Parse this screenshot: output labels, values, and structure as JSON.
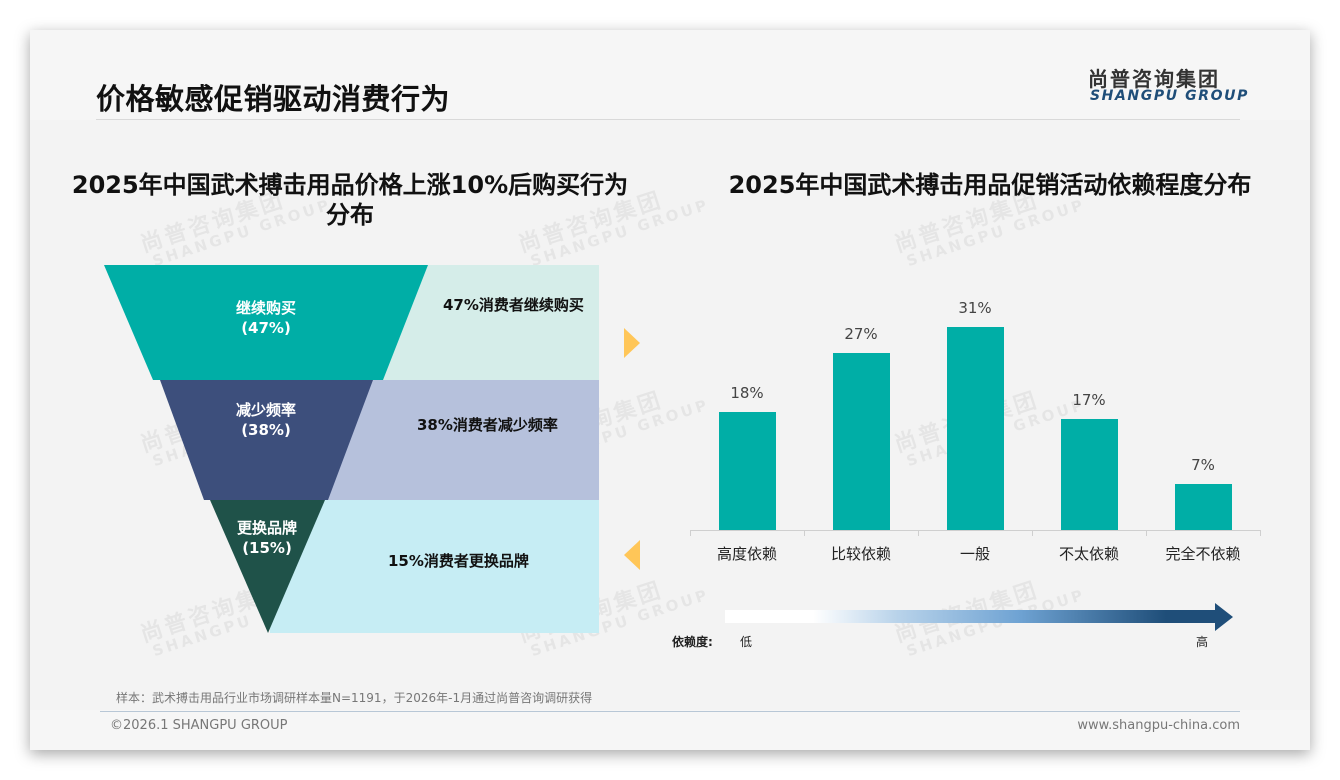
{
  "header": {
    "title": "价格敏感促销驱动消费行为",
    "logo_cn": "尚普咨询集团",
    "logo_en": "SHANGPU GROUP"
  },
  "watermark": {
    "cn": "尚普咨询集团",
    "en": "SHANGPU GROUP"
  },
  "left_chart": {
    "title_line1": "2025年中国武术搏击用品价格上涨10%后购买行为",
    "title_line2": "分布",
    "colors": {
      "band1": "#00aea6",
      "band2": "#3d4f7c",
      "band3": "#1f5249",
      "band1_bg": "#d5ede9",
      "band2_bg": "#b6c1dc",
      "band3_bg": "#c6edf4"
    },
    "segments": [
      {
        "label": "继续购买",
        "pct_label": "(47%)",
        "description": "47%消费者继续购买"
      },
      {
        "label": "减少频率",
        "pct_label": "(38%)",
        "description": "38%消费者减少频率"
      },
      {
        "label": "更换品牌",
        "pct_label": "(15%)",
        "description": "15%消费者更换品牌"
      }
    ]
  },
  "right_chart": {
    "title": "2025年中国武术搏击用品促销活动依赖程度分布",
    "bar_color": "#00aea6",
    "scale": {
      "title": "依赖度:",
      "low": "低",
      "high": "高"
    }
  },
  "chart_data": [
    {
      "type": "funnel",
      "title": "2025年中国武术搏击用品价格上涨10%后购买行为分布",
      "categories": [
        "继续购买",
        "减少频率",
        "更换品牌"
      ],
      "values": [
        47,
        38,
        15
      ],
      "unit": "%",
      "annotations": [
        "47%消费者继续购买",
        "38%消费者减少频率",
        "15%消费者更换品牌"
      ]
    },
    {
      "type": "bar",
      "title": "2025年中国武术搏击用品促销活动依赖程度分布",
      "categories": [
        "高度依赖",
        "比较依赖",
        "一般",
        "不太依赖",
        "完全不依赖"
      ],
      "values": [
        18,
        27,
        31,
        17,
        7
      ],
      "value_labels": [
        "18%",
        "27%",
        "31%",
        "17%",
        "7%"
      ],
      "xlabel": "",
      "ylabel": "",
      "ylim": [
        0,
        35
      ],
      "grid": false,
      "legend": "none",
      "annotations": [
        "依赖度: 低 → 高 (gradient arrow)"
      ]
    }
  ],
  "footer": {
    "source": "样本：武术搏击用品行业市场调研样本量N=1191，于2026年-1月通过尚普咨询调研获得",
    "copyright": "©2026.1 SHANGPU GROUP",
    "website": "www.shangpu-china.com"
  }
}
